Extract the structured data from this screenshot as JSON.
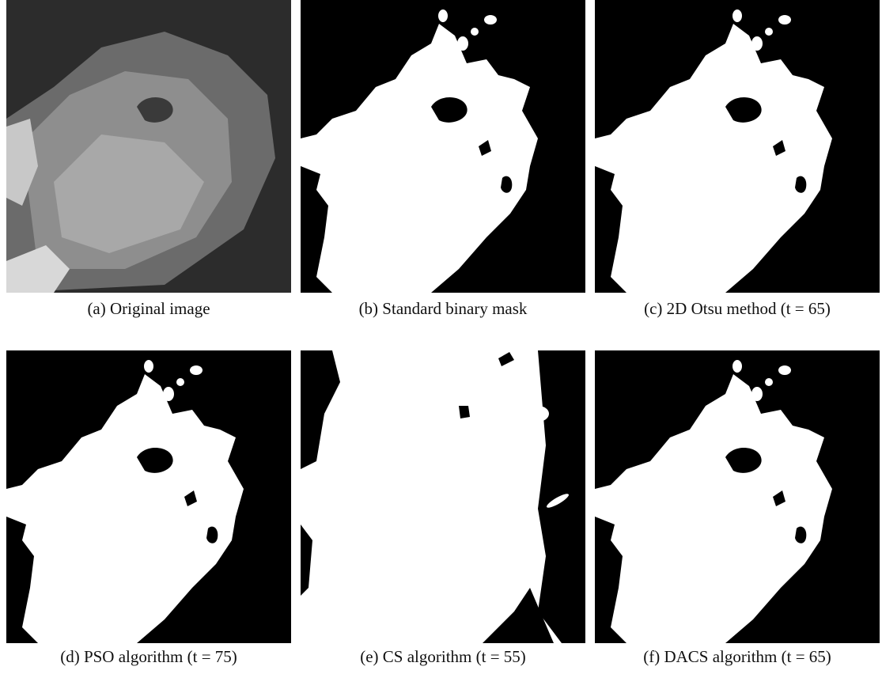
{
  "figure": {
    "captions": [
      "(a) Original image",
      "(b) Standard binary mask",
      "(c) 2D Otsu method (t = 65)",
      "(d) PSO algorithm (t = 75)",
      "(e) CS algorithm (t = 55)",
      "(f) DACS algorithm (t = 65)"
    ]
  }
}
